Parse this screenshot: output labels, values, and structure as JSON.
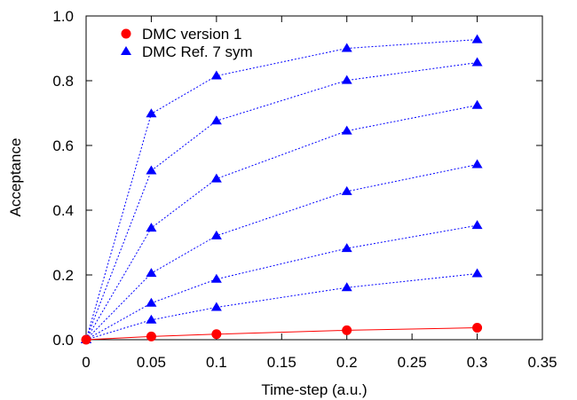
{
  "chart_data": {
    "type": "line",
    "title": "",
    "xlabel": "Time-step (a.u.)",
    "ylabel": "Acceptance",
    "xlim": [
      0,
      0.35
    ],
    "ylim": [
      0,
      1.0
    ],
    "xticks": [
      0,
      0.05,
      0.1,
      0.15,
      0.2,
      0.25,
      0.3,
      0.35
    ],
    "xtick_labels": [
      "0",
      "0.05",
      "0.1",
      "0.15",
      "0.2",
      "0.25",
      "0.3",
      "0.35"
    ],
    "yticks": [
      0,
      0.2,
      0.4,
      0.6,
      0.8,
      1.0
    ],
    "ytick_labels": [
      "0.0",
      "0.2",
      "0.4",
      "0.6",
      "0.8",
      "1.0"
    ],
    "grid": false,
    "legend_position": "top-left",
    "series": [
      {
        "name": "DMC version 1",
        "color": "#ff0000",
        "marker": "circle",
        "line": "solid",
        "x": [
          0,
          0.05,
          0.1,
          0.2,
          0.3
        ],
        "y": [
          0,
          0.01,
          0.017,
          0.029,
          0.037
        ]
      },
      {
        "name": "DMC Ref. 7 sym",
        "color": "#0000ff",
        "marker": "triangle",
        "line": "dotted",
        "lines": [
          {
            "x": [
              0,
              0.05,
              0.1,
              0.2,
              0.3
            ],
            "y": [
              0,
              0.698,
              0.815,
              0.9,
              0.927
            ]
          },
          {
            "x": [
              0,
              0.05,
              0.1,
              0.2,
              0.3
            ],
            "y": [
              0,
              0.522,
              0.676,
              0.801,
              0.856
            ]
          },
          {
            "x": [
              0,
              0.05,
              0.1,
              0.2,
              0.3
            ],
            "y": [
              0,
              0.345,
              0.497,
              0.645,
              0.724
            ]
          },
          {
            "x": [
              0,
              0.05,
              0.1,
              0.2,
              0.3
            ],
            "y": [
              0,
              0.205,
              0.321,
              0.458,
              0.541
            ]
          },
          {
            "x": [
              0,
              0.05,
              0.1,
              0.2,
              0.3
            ],
            "y": [
              0,
              0.113,
              0.187,
              0.282,
              0.353
            ]
          },
          {
            "x": [
              0,
              0.05,
              0.1,
              0.2,
              0.3
            ],
            "y": [
              0,
              0.061,
              0.1,
              0.161,
              0.204
            ]
          }
        ]
      }
    ]
  }
}
